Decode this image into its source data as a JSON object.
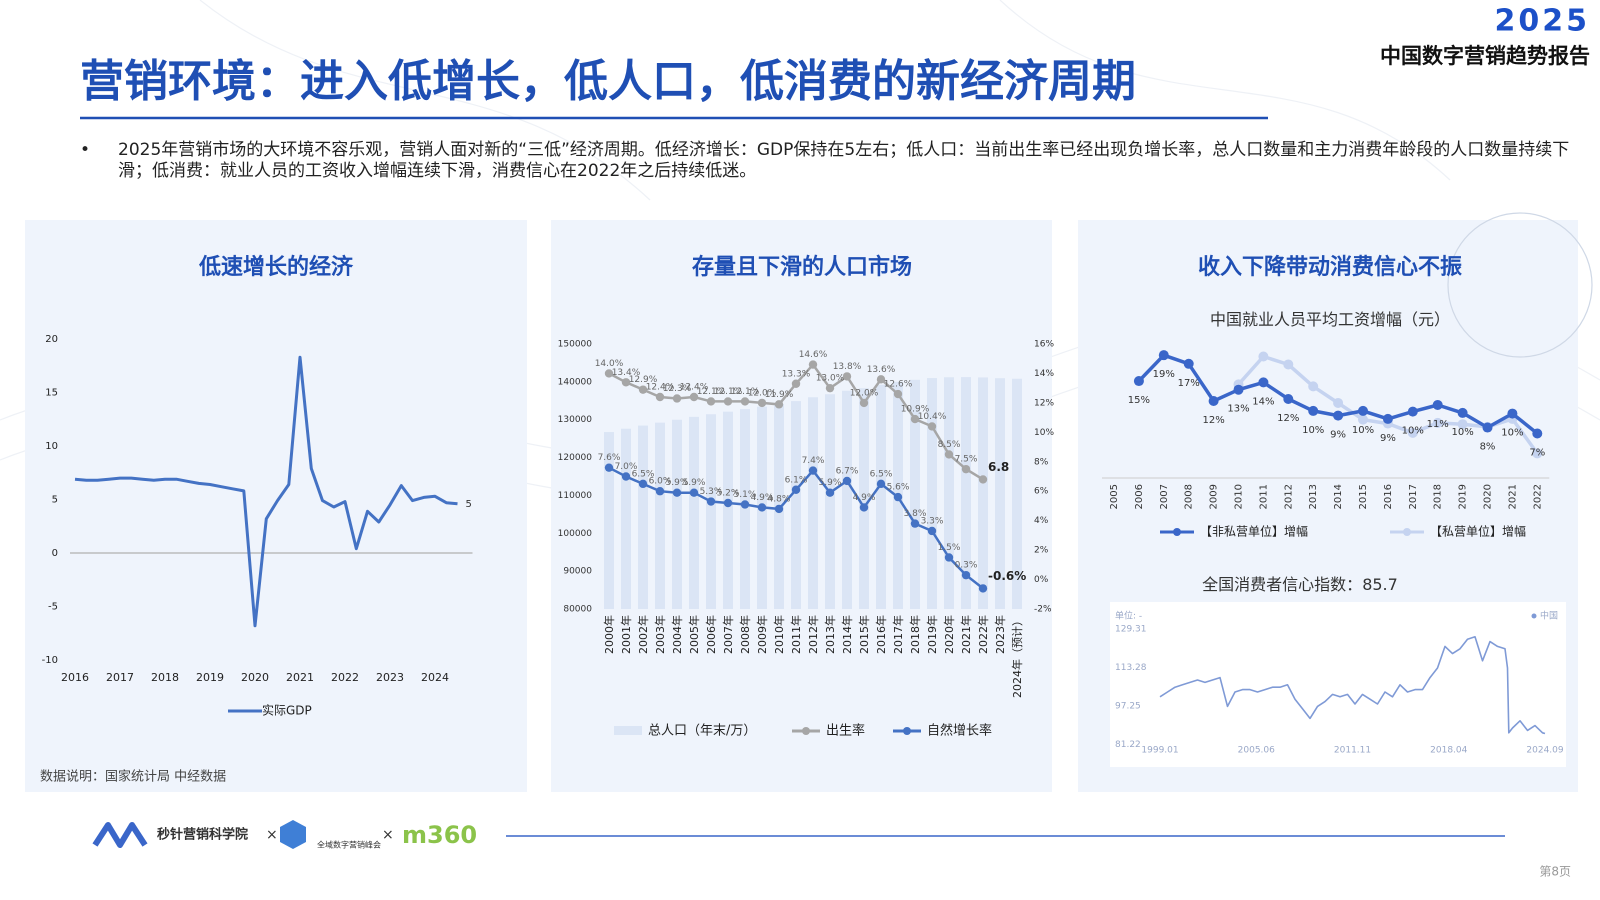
{
  "header": {
    "logo_year": "2025",
    "report": "中国数字营销趋势报告",
    "title": "营销环境：进入低增长，低人口，低消费的新经济周期"
  },
  "bullet": "2025年营销市场的大环境不容乐观，营销人面对新的“三低”经济周期。低经济增长：GDP保持在5左右；低人口：当前出生率已经出现负增长率，总人口数量和主力消费年龄段的人口数量持续下滑；低消费：就业人员的工资收入增幅连续下滑，消费信心在2022年之后持续低迷。",
  "note": "数据说明：国家统计局 中经数据",
  "footer": {
    "brand1": "秒针营销科学院",
    "separators": [
      "×",
      "×"
    ],
    "brand2": "全域数字营销峰会",
    "brand3": "m360",
    "page": "第8页"
  },
  "chart_data": [
    {
      "type": "line",
      "title": "低速增长的经济",
      "categories": [
        "2016",
        null,
        null,
        null,
        "2017",
        null,
        null,
        null,
        "2018",
        null,
        null,
        null,
        "2019",
        null,
        null,
        null,
        "2020",
        null,
        null,
        null,
        "2021",
        null,
        null,
        null,
        "2022",
        null,
        null,
        null,
        "2023",
        null,
        null,
        null,
        "2024",
        null,
        null
      ],
      "series": [
        {
          "name": "实际GDP",
          "color": "#4472c4",
          "values": [
            6.9,
            6.8,
            6.8,
            6.9,
            7.0,
            7.0,
            6.9,
            6.8,
            6.9,
            6.9,
            6.7,
            6.5,
            6.4,
            6.2,
            6.0,
            5.8,
            -6.8,
            3.2,
            4.9,
            6.4,
            18.3,
            7.9,
            4.9,
            4.3,
            4.8,
            0.4,
            3.9,
            2.9,
            4.5,
            6.3,
            4.9,
            5.2,
            5.3,
            4.7,
            4.6
          ],
          "value_labels": [
            null,
            null,
            null,
            null,
            null,
            null,
            null,
            null,
            null,
            null,
            null,
            null,
            null,
            null,
            null,
            null,
            null,
            null,
            null,
            null,
            null,
            null,
            null,
            null,
            null,
            null,
            null,
            null,
            null,
            null,
            null,
            null,
            null,
            null,
            "5"
          ]
        }
      ],
      "ylim": [
        -10,
        20
      ],
      "yticks": [
        -10,
        -5,
        0,
        5,
        10,
        15,
        20
      ],
      "grid": false
    },
    {
      "type": "bar-line",
      "title": "存量且下滑的人口市场",
      "categories": [
        "2000年",
        "2001年",
        "2002年",
        "2003年",
        "2004年",
        "2005年",
        "2006年",
        "2007年",
        "2008年",
        "2009年",
        "2010年",
        "2011年",
        "2012年",
        "2013年",
        "2014年",
        "2015年",
        "2016年",
        "2017年",
        "2018年",
        "2019年",
        "2020年",
        "2021年",
        "2022年",
        "2023年",
        "2024年（预计）"
      ],
      "series": [
        {
          "name": "总人口（年末/万）",
          "type": "bar",
          "color": "#dbe5f5",
          "values": [
            126743,
            127627,
            128453,
            129227,
            129988,
            130756,
            131448,
            132129,
            132802,
            133450,
            134091,
            134916,
            135922,
            136726,
            137646,
            138326,
            139232,
            140011,
            140541,
            141008,
            141212,
            141260,
            141175,
            140967,
            140828
          ]
        },
        {
          "name": "出生率",
          "type": "line",
          "axis": "y2",
          "color": "#a6a6a6",
          "values": [
            14.0,
            13.4,
            12.9,
            12.4,
            12.3,
            12.4,
            12.1,
            12.1,
            12.1,
            12.0,
            11.9,
            13.3,
            14.6,
            13.0,
            13.8,
            12.0,
            13.6,
            12.6,
            10.9,
            10.4,
            8.5,
            7.5,
            6.8,
            null,
            null
          ],
          "value_labels": [
            "14.0%",
            "13.4%",
            "12.9%",
            "12.4%",
            "12.3%",
            "12.4%",
            "12.1%",
            "12.1%",
            "12.1%",
            "12.0%",
            "11.9%",
            "13.3%",
            "14.6%",
            "13.0%",
            "13.8%",
            "12.0%",
            "13.6%",
            "12.6%",
            "10.9%",
            "10.4%",
            "8.5%",
            "7.5%",
            "6.8",
            null,
            null
          ]
        },
        {
          "name": "自然增长率",
          "type": "line",
          "axis": "y2",
          "color": "#4472c4",
          "values": [
            7.6,
            7.0,
            6.5,
            6.0,
            5.9,
            5.9,
            5.3,
            5.2,
            5.1,
            4.9,
            4.8,
            6.1,
            7.4,
            5.9,
            6.7,
            4.9,
            6.5,
            5.6,
            3.8,
            3.3,
            1.5,
            0.3,
            -0.6,
            null,
            null
          ],
          "value_labels": [
            "7.6%",
            "7.0%",
            "6.5%",
            "6.0%",
            "5.9%",
            "5.9%",
            "5.3%",
            "5.2%",
            "5.1%",
            "4.9%",
            "4.8%",
            "6.1%",
            "7.4%",
            "5.9%",
            "6.7%",
            "4.9%",
            "6.5%",
            "5.6%",
            "3.8%",
            "3.3%",
            "1.5%",
            "0.3%",
            "-0.6%",
            null,
            null
          ]
        }
      ],
      "ylim": [
        80000,
        150000
      ],
      "yticks": [
        80000,
        90000,
        100000,
        110000,
        120000,
        130000,
        140000,
        150000
      ],
      "y2lim": [
        -2,
        16
      ],
      "y2ticks": [
        {
          "value": -2,
          "label": "-2%"
        },
        {
          "value": 0,
          "label": "0%"
        },
        {
          "value": 2,
          "label": "2%"
        },
        {
          "value": 4,
          "label": "4%"
        },
        {
          "value": 6,
          "label": "6%"
        },
        {
          "value": 8,
          "label": "8%"
        },
        {
          "value": 10,
          "label": "10%"
        },
        {
          "value": 12,
          "label": "12%"
        },
        {
          "value": 14,
          "label": "14%"
        },
        {
          "value": 16,
          "label": "16%"
        }
      ]
    },
    {
      "type": "line",
      "panel_title": "收入下降带动消费信心不振",
      "title": "中国就业人员平均工资增幅（元）",
      "categories": [
        "2005",
        "2006",
        "2007",
        "2008",
        "2009",
        "2010",
        "2011",
        "2012",
        "2013",
        "2014",
        "2015",
        "2016",
        "2017",
        "2018",
        "2019",
        "2020",
        "2021",
        "2022"
      ],
      "series": [
        {
          "name": "【非私营单位】增幅",
          "color": "#3a66c9",
          "values": [
            null,
            14.6,
            18.5,
            17.2,
            11.6,
            13.3,
            14.4,
            11.9,
            10.1,
            9.4,
            10.1,
            8.9,
            10.0,
            11.0,
            9.8,
            7.6,
            9.7,
            6.7
          ],
          "value_labels": [
            null,
            "15%",
            "19%",
            "17%",
            "12%",
            "13%",
            "14%",
            "12%",
            "10%",
            "9%",
            "10%",
            "9%",
            "10%",
            "11%",
            "10%",
            "8%",
            "10%",
            "7%"
          ]
        },
        {
          "name": "【私营单位】增幅",
          "color": "#c5d3f0",
          "values": [
            null,
            null,
            null,
            null,
            null,
            14.1,
            18.3,
            17.1,
            13.8,
            11.3,
            8.8,
            8.2,
            6.8,
            8.3,
            8.1,
            7.7,
            8.9,
            3.7
          ]
        }
      ],
      "ylim": [
        0,
        25
      ]
    },
    {
      "type": "line",
      "title": "全国消费者信心指数：",
      "latest_value": 85.7,
      "unit_label": "单位: -",
      "x": [
        "1999.01",
        "1999.07",
        "2000.01",
        "2000.07",
        "2001.01",
        "2001.07",
        "2002.01",
        "2002.07",
        "2003.01",
        "2003.07",
        "2004.01",
        "2004.07",
        "2005.01",
        "2005.07",
        "2006.01",
        "2006.07",
        "2007.01",
        "2007.07",
        "2008.01",
        "2008.07",
        "2009.01",
        "2009.07",
        "2010.01",
        "2010.07",
        "2011.01",
        "2011.07",
        "2012.01",
        "2012.07",
        "2013.01",
        "2013.07",
        "2014.01",
        "2014.07",
        "2015.01",
        "2015.07",
        "2016.01",
        "2016.07",
        "2017.01",
        "2017.07",
        "2018.01",
        "2018.07",
        "2019.01",
        "2019.07",
        "2020.01",
        "2020.07",
        "2021.01",
        "2021.07",
        "2022.01",
        "2022.03",
        "2022.04",
        "2022.07",
        "2023.01",
        "2023.07",
        "2024.01",
        "2024.07",
        "2024.09"
      ],
      "series": [
        {
          "name": "中国",
          "color": "#7f9ad6",
          "values": [
            101,
            103,
            105,
            106,
            107,
            108,
            107,
            108,
            109,
            97,
            103,
            104,
            104,
            103,
            104,
            105,
            105,
            106,
            100,
            96,
            92,
            97,
            99,
            102,
            101,
            102,
            98,
            102,
            100,
            98,
            103,
            101,
            106,
            103,
            104,
            104,
            109,
            113,
            122,
            119,
            121,
            125,
            126,
            116,
            124,
            122,
            121,
            113,
            86,
            88,
            91,
            87,
            89,
            86,
            85.7
          ]
        }
      ],
      "xlim": [
        "1999.01",
        "2024.09"
      ],
      "xticks": [
        "1999.01",
        "2005.06",
        "2011.11",
        "2018.04",
        "2024.09"
      ],
      "ylim": [
        78,
        133
      ],
      "yticks": [
        81.22,
        97.25,
        113.28,
        129.31
      ]
    }
  ]
}
